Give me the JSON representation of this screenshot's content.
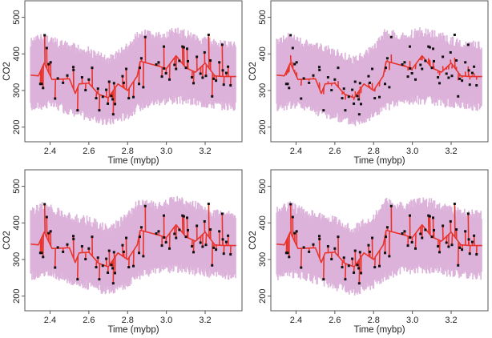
{
  "chart_data": [
    {
      "type": "line",
      "panel": "top-left",
      "xlabel": "Time (mybp)",
      "ylabel": "CO2",
      "fit_type": "interpolating"
    },
    {
      "type": "line",
      "panel": "top-right",
      "xlabel": "Time (mybp)",
      "ylabel": "CO2",
      "fit_type": "smoothed"
    },
    {
      "type": "line",
      "panel": "bottom-left",
      "xlabel": "Time (mybp)",
      "ylabel": "CO2",
      "fit_type": "interpolating"
    },
    {
      "type": "line",
      "panel": "bottom-right",
      "xlabel": "Time (mybp)",
      "ylabel": "CO2",
      "fit_type": "interpolating"
    }
  ],
  "shared": {
    "xlim": [
      2.27,
      3.39
    ],
    "ylim": [
      160,
      545
    ],
    "xticks": [
      "2.4",
      "2.6",
      "2.8",
      "3.0",
      "3.2"
    ],
    "yticks": [
      "200",
      "300",
      "400",
      "500"
    ],
    "grid": false,
    "colors": {
      "fit": "#e8342c",
      "band": "#dcb2da",
      "points": "#111111"
    },
    "observations": [
      [
        2.35,
        318
      ],
      [
        2.357,
        318
      ],
      [
        2.364,
        307
      ],
      [
        2.372,
        451
      ],
      [
        2.383,
        416
      ],
      [
        2.393,
        372
      ],
      [
        2.403,
        377
      ],
      [
        2.426,
        278
      ],
      [
        2.44,
        333
      ],
      [
        2.467,
        321
      ],
      [
        2.489,
        341
      ],
      [
        2.52,
        364
      ],
      [
        2.521,
        356
      ],
      [
        2.542,
        246
      ],
      [
        2.565,
        336
      ],
      [
        2.583,
        301
      ],
      [
        2.6,
        330
      ],
      [
        2.617,
        362
      ],
      [
        2.638,
        279
      ],
      [
        2.647,
        305
      ],
      [
        2.654,
        246
      ],
      [
        2.672,
        283
      ],
      [
        2.69,
        302
      ],
      [
        2.698,
        264
      ],
      [
        2.705,
        324
      ],
      [
        2.716,
        285
      ],
      [
        2.723,
        276
      ],
      [
        2.726,
        235
      ],
      [
        2.73,
        320
      ],
      [
        2.735,
        263
      ],
      [
        2.774,
        339
      ],
      [
        2.78,
        321
      ],
      [
        2.793,
        359
      ],
      [
        2.806,
        279
      ],
      [
        2.83,
        282
      ],
      [
        2.859,
        318
      ],
      [
        2.863,
        362
      ],
      [
        2.871,
        388
      ],
      [
        2.881,
        309
      ],
      [
        2.891,
        446
      ],
      [
        2.948,
        371
      ],
      [
        2.96,
        377
      ],
      [
        2.977,
        338
      ],
      [
        2.987,
        420
      ],
      [
        2.988,
        360
      ],
      [
        2.998,
        347
      ],
      [
        3.016,
        330
      ],
      [
        3.042,
        370
      ],
      [
        3.05,
        359
      ],
      [
        3.067,
        381
      ],
      [
        3.083,
        420
      ],
      [
        3.09,
        418
      ],
      [
        3.101,
        362
      ],
      [
        3.107,
        414
      ],
      [
        3.111,
        380
      ],
      [
        3.132,
        336
      ],
      [
        3.14,
        320
      ],
      [
        3.157,
        392
      ],
      [
        3.176,
        346
      ],
      [
        3.187,
        335
      ],
      [
        3.197,
        404
      ],
      [
        3.204,
        340
      ],
      [
        3.218,
        452
      ],
      [
        3.227,
        382
      ],
      [
        3.236,
        284
      ],
      [
        3.244,
        332
      ],
      [
        3.256,
        327
      ],
      [
        3.273,
        377
      ],
      [
        3.288,
        425
      ],
      [
        3.291,
        355
      ],
      [
        3.296,
        316
      ],
      [
        3.309,
        348
      ],
      [
        3.318,
        365
      ],
      [
        3.331,
        314
      ]
    ],
    "fit_mean": [
      [
        2.3,
        342
      ],
      [
        2.34,
        340
      ],
      [
        2.37,
        375
      ],
      [
        2.41,
        330
      ],
      [
        2.5,
        332
      ],
      [
        2.53,
        292
      ],
      [
        2.55,
        318
      ],
      [
        2.6,
        320
      ],
      [
        2.65,
        290
      ],
      [
        2.7,
        280
      ],
      [
        2.75,
        318
      ],
      [
        2.8,
        300
      ],
      [
        2.85,
        340
      ],
      [
        2.865,
        380
      ],
      [
        2.95,
        368
      ],
      [
        3.0,
        360
      ],
      [
        3.05,
        395
      ],
      [
        3.1,
        362
      ],
      [
        3.15,
        350
      ],
      [
        3.2,
        375
      ],
      [
        3.25,
        340
      ],
      [
        3.3,
        338
      ],
      [
        3.36,
        338
      ]
    ],
    "band_upper": [
      [
        2.3,
        445
      ],
      [
        2.37,
        460
      ],
      [
        2.45,
        440
      ],
      [
        2.6,
        420
      ],
      [
        2.7,
        395
      ],
      [
        2.8,
        430
      ],
      [
        2.86,
        470
      ],
      [
        2.95,
        460
      ],
      [
        3.05,
        475
      ],
      [
        3.15,
        460
      ],
      [
        3.25,
        440
      ],
      [
        3.36,
        435
      ]
    ],
    "band_lower": [
      [
        2.3,
        242
      ],
      [
        2.4,
        250
      ],
      [
        2.5,
        232
      ],
      [
        2.6,
        215
      ],
      [
        2.7,
        200
      ],
      [
        2.8,
        220
      ],
      [
        2.86,
        242
      ],
      [
        2.95,
        258
      ],
      [
        3.05,
        262
      ],
      [
        3.15,
        255
      ],
      [
        3.25,
        248
      ],
      [
        3.36,
        242
      ]
    ]
  }
}
